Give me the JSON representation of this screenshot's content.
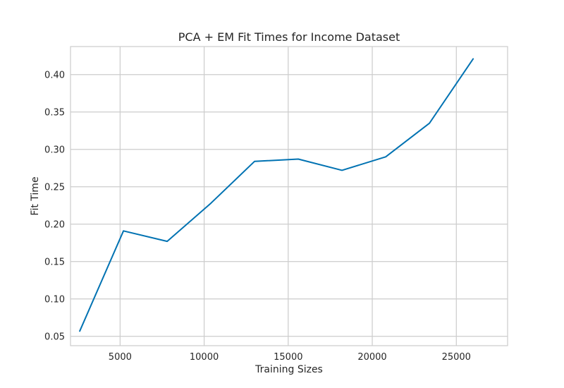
{
  "chart_data": {
    "type": "line",
    "title": "PCA + EM Fit Times for Income Dataset",
    "xlabel": "Training Sizes",
    "ylabel": "Fit Time",
    "xlim": [
      2050,
      28050
    ],
    "ylim": [
      0.0375,
      0.4375
    ],
    "xticks": [
      5000,
      10000,
      15000,
      20000,
      25000
    ],
    "yticks": [
      0.05,
      0.1,
      0.15,
      0.2,
      0.25,
      0.3,
      0.35,
      0.4
    ],
    "xtick_labels": [
      "5000",
      "10000",
      "15000",
      "20000",
      "25000"
    ],
    "ytick_labels": [
      "0.05",
      "0.10",
      "0.15",
      "0.20",
      "0.25",
      "0.30",
      "0.35",
      "0.40"
    ],
    "grid": true,
    "line_color": "#0072b2",
    "grid_color": "#cccccc",
    "series": [
      {
        "x": [
          2600,
          5200,
          7800,
          10400,
          13000,
          15600,
          18200,
          20800,
          23400,
          26000
        ],
        "y": [
          0.057,
          0.191,
          0.177,
          0.228,
          0.284,
          0.287,
          0.272,
          0.29,
          0.335,
          0.421
        ]
      }
    ]
  }
}
